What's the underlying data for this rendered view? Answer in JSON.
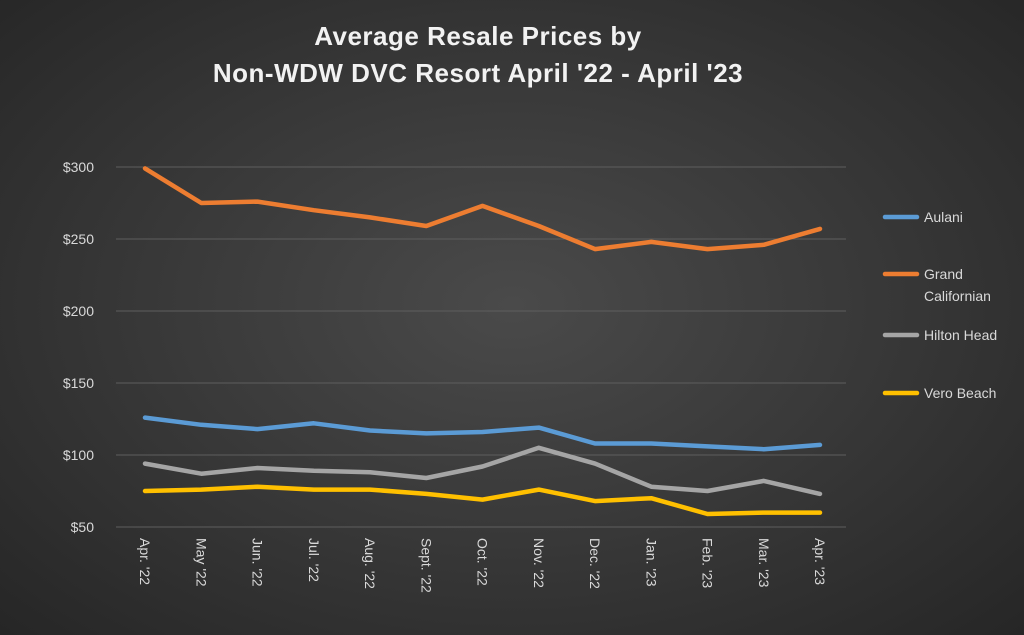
{
  "chart_data": {
    "type": "line",
    "title_lines": [
      "Average Resale Prices by",
      "Non-WDW DVC Resort April '22 - April '23"
    ],
    "categories": [
      "Apr. '22",
      "May '22",
      "Jun. '22",
      "Jul. '22",
      "Aug. '22",
      "Sept. '22",
      "Oct. '22",
      "Nov. '22",
      "Dec. '22",
      "Jan. '23",
      "Feb. '23",
      "Mar. '23",
      "Apr. '23"
    ],
    "ylim": [
      50,
      300
    ],
    "yticks": [
      50,
      100,
      150,
      200,
      250,
      300
    ],
    "ytick_labels": [
      "$50",
      "$100",
      "$150",
      "$200",
      "$250",
      "$300"
    ],
    "grid": true,
    "legend_position": "right",
    "series": [
      {
        "name": "Aulani",
        "color": "#5b9bd5",
        "values": [
          126,
          121,
          118,
          122,
          117,
          115,
          116,
          119,
          108,
          108,
          106,
          104,
          107
        ]
      },
      {
        "name": "Grand Californian",
        "color": "#ed7d31",
        "values": [
          299,
          275,
          276,
          270,
          265,
          259,
          273,
          259,
          243,
          248,
          243,
          246,
          257
        ]
      },
      {
        "name": "Hilton Head",
        "color": "#a5a5a5",
        "values": [
          94,
          87,
          91,
          89,
          88,
          84,
          92,
          105,
          94,
          78,
          75,
          82,
          73
        ]
      },
      {
        "name": "Vero Beach",
        "color": "#ffc000",
        "values": [
          75,
          76,
          78,
          76,
          76,
          73,
          69,
          76,
          68,
          70,
          59,
          60,
          60
        ]
      }
    ]
  }
}
